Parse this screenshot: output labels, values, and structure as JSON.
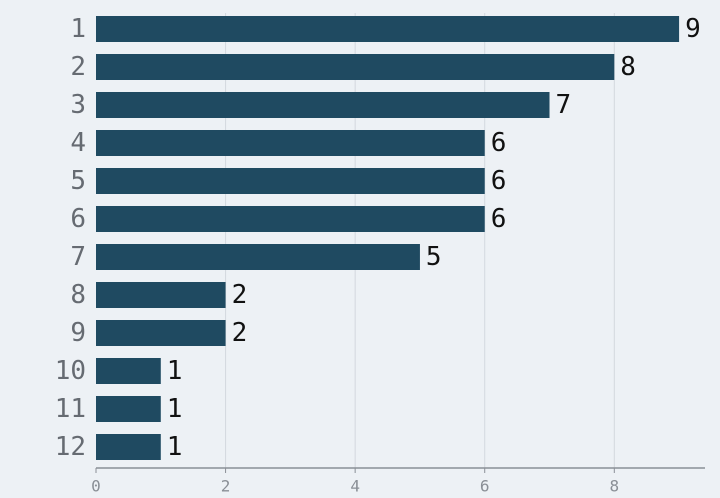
{
  "chart_data": {
    "type": "bar",
    "orientation": "horizontal",
    "categories": [
      "1",
      "2",
      "3",
      "4",
      "5",
      "6",
      "7",
      "8",
      "9",
      "10",
      "11",
      "12"
    ],
    "values": [
      9,
      8,
      7,
      6,
      6,
      6,
      5,
      2,
      2,
      1,
      1,
      1
    ],
    "title": "",
    "xlabel": "",
    "ylabel": "",
    "xlim": [
      0,
      9.4
    ],
    "x_ticks": [
      0,
      2,
      4,
      6,
      8
    ],
    "grid": true,
    "data_labels": true,
    "colors": {
      "bar": "#1f4a61",
      "background": "#edf1f5",
      "grid": "#d3d8de",
      "axis": "#8a8f96"
    }
  }
}
